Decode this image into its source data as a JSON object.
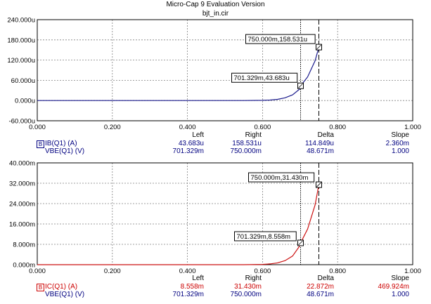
{
  "window": {
    "title": "Micro-Cap 9 Evaluation Version",
    "file": "bjt_in.cir"
  },
  "colors": {
    "ib_trace": "#1a1a8c",
    "ic_trace": "#cc1111",
    "ib_text": "#000080",
    "ic_text": "#cc0000"
  },
  "chart_data": [
    {
      "type": "line",
      "x_ticks": [
        "0.000",
        "0.200",
        "0.400",
        "0.600",
        "0.800",
        "1.000"
      ],
      "y_ticks": [
        "240.000u",
        "180.000u",
        "120.000u",
        "60.000u",
        "0.000u",
        "-60.000u"
      ],
      "xlim": [
        0,
        1
      ],
      "ylim": [
        -60,
        240
      ],
      "y_unit": "uA",
      "grid": true,
      "series": [
        {
          "name": "IB(Q1) (A)",
          "x": [
            0,
            0.55,
            0.6,
            0.62,
            0.64,
            0.66,
            0.68,
            0.7,
            0.701329,
            0.72,
            0.74,
            0.75
          ],
          "y": [
            0,
            0,
            0.6,
            1.5,
            3.5,
            8,
            17,
            35,
            43.683,
            70,
            118,
            158.531
          ]
        }
      ],
      "cursors": [
        {
          "x": 0.701329,
          "label": "701.329m,43.683u",
          "style": "dotted"
        },
        {
          "x": 0.75,
          "label": "750.000m,158.531u",
          "style": "dashed"
        }
      ],
      "table": {
        "headers": [
          "Left",
          "Right",
          "Delta",
          "Slope"
        ],
        "rows": [
          {
            "tag": "B",
            "name": "IB(Q1) (A)",
            "values": [
              "43.683u",
              "158.531u",
              "114.849u",
              "2.360m"
            ]
          },
          {
            "tag": "",
            "name": "VBE(Q1) (V)",
            "values": [
              "701.329m",
              "750.000m",
              "48.671m",
              "1.000"
            ]
          }
        ]
      }
    },
    {
      "type": "line",
      "x_ticks": [
        "0.000",
        "0.200",
        "0.400",
        "0.600",
        "0.800",
        "1.000"
      ],
      "y_ticks": [
        "40.000m",
        "32.000m",
        "24.000m",
        "16.000m",
        "8.000m",
        "0.000m"
      ],
      "xlim": [
        0,
        1
      ],
      "ylim": [
        0,
        40
      ],
      "y_unit": "mA",
      "grid": true,
      "series": [
        {
          "name": "IC(Q1) (A)",
          "x": [
            0,
            0.55,
            0.6,
            0.62,
            0.64,
            0.66,
            0.68,
            0.7,
            0.701329,
            0.72,
            0.74,
            0.75
          ],
          "y": [
            0,
            0,
            0.1,
            0.3,
            0.7,
            1.6,
            3.4,
            7.6,
            8.558,
            14,
            23.5,
            31.43
          ]
        }
      ],
      "cursors": [
        {
          "x": 0.701329,
          "label": "701.329m,8.558m",
          "style": "dotted"
        },
        {
          "x": 0.75,
          "label": "750.000m,31.430m",
          "style": "dashed"
        }
      ],
      "table": {
        "headers": [
          "Left",
          "Right",
          "Delta",
          "Slope"
        ],
        "rows": [
          {
            "tag": "B",
            "name": "IC(Q1) (A)",
            "values": [
              "8.558m",
              "31.430m",
              "22.872m",
              "469.924m"
            ]
          },
          {
            "tag": "",
            "name": "VBE(Q1) (V)",
            "values": [
              "701.329m",
              "750.000m",
              "48.671m",
              "1.000"
            ]
          }
        ]
      }
    }
  ]
}
